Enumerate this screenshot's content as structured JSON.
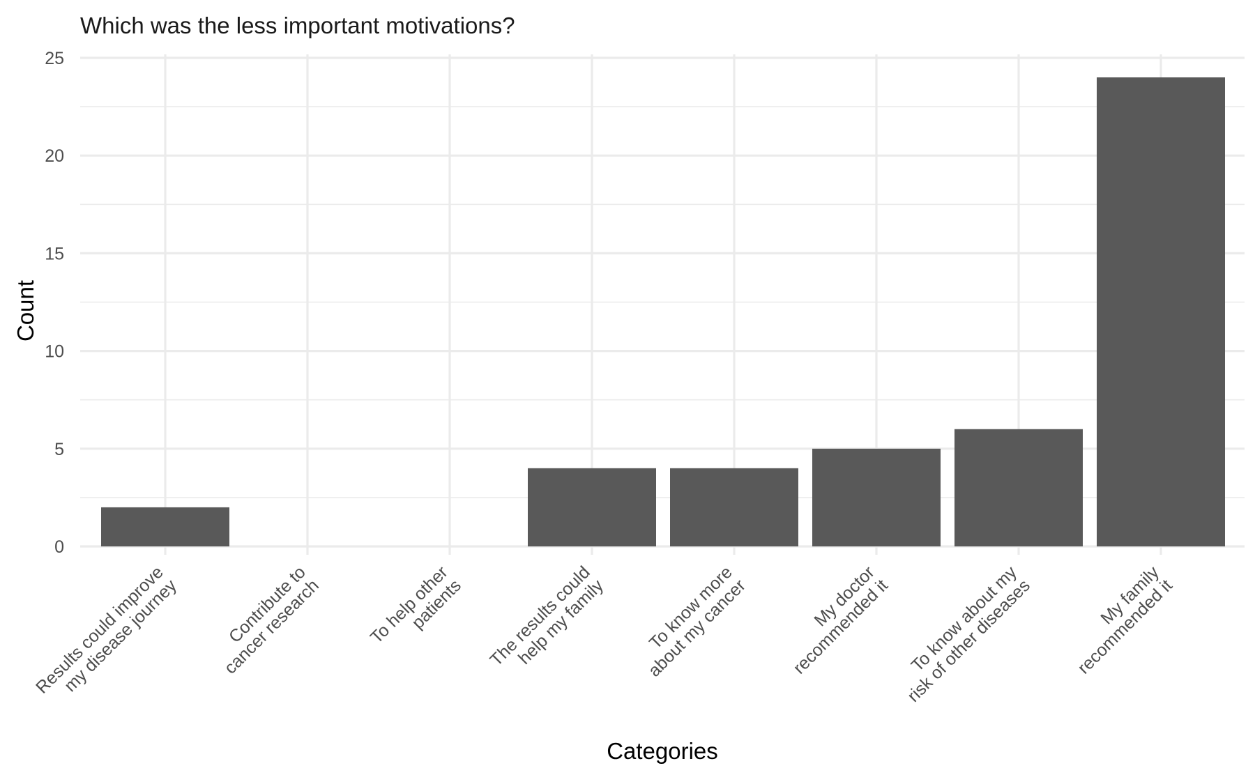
{
  "chart_data": {
    "type": "bar",
    "title": "Which was the less important motivations?",
    "xlabel": "Categories",
    "ylabel": "Count",
    "categories": [
      [
        "Results could improve",
        "my disease journey"
      ],
      [
        "Contribute to",
        "cancer research"
      ],
      [
        "To help other",
        "patients"
      ],
      [
        "The results could",
        "help my family"
      ],
      [
        "To know more",
        "about my cancer"
      ],
      [
        "My doctor",
        "recommended it"
      ],
      [
        "To know about my",
        "risk of other diseases"
      ],
      [
        "My family",
        "recommended it"
      ]
    ],
    "values": [
      2,
      0,
      0,
      4,
      4,
      5,
      6,
      24
    ],
    "ylim": [
      0,
      25
    ],
    "yticks": [
      0,
      5,
      10,
      15,
      20,
      25
    ],
    "grid": true,
    "legend": "none",
    "bar_color": "#595959",
    "grid_color": "#ebebeb"
  }
}
